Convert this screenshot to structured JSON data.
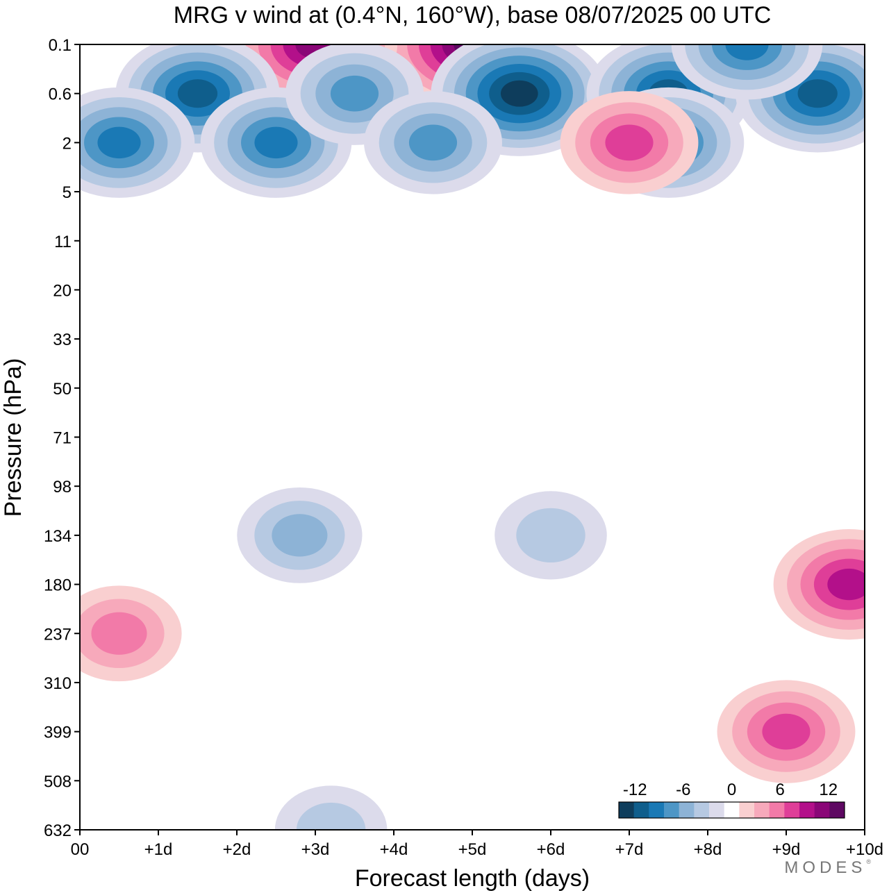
{
  "chart_data": {
    "type": "heatmap",
    "title": "MRG v wind at (0.4°N, 160°W),  base 08/07/2025  00 UTC",
    "xlabel": "Forecast length (days)",
    "ylabel": "Pressure (hPa)",
    "x_ticks": [
      "00",
      "+1d",
      "+2d",
      "+3d",
      "+4d",
      "+5d",
      "+6d",
      "+7d",
      "+8d",
      "+9d",
      "+10d"
    ],
    "x_values": [
      0,
      1,
      2,
      3,
      4,
      5,
      6,
      7,
      8,
      9,
      10
    ],
    "xlim": [
      0,
      10
    ],
    "y_ticks": [
      "0.1",
      "0.6",
      "2",
      "5",
      "11",
      "20",
      "33",
      "50",
      "71",
      "98",
      "134",
      "180",
      "237",
      "310",
      "399",
      "508",
      "632"
    ],
    "y_axis_inverted": true,
    "colorbar": {
      "tick_labels": [
        "-12",
        "-6",
        "0",
        "6",
        "12"
      ],
      "levels": [
        -14,
        -12,
        -10,
        -8,
        -6,
        -4,
        -2,
        0,
        2,
        4,
        6,
        8,
        10,
        12,
        14
      ],
      "colors": [
        "#0e3d5c",
        "#0f5e8c",
        "#1a79b5",
        "#4d96c6",
        "#8db3d6",
        "#b6c9e2",
        "#dcdbeb",
        "#ffffff",
        "#f9cfd0",
        "#f7a9bb",
        "#f27aa8",
        "#df3e98",
        "#b3108a",
        "#8a0677",
        "#5e0862"
      ]
    },
    "features": [
      {
        "value": 6,
        "day": 0.5,
        "level": "237"
      },
      {
        "value": -6,
        "day": 2.8,
        "level": "134"
      },
      {
        "value": -4,
        "day": 6.0,
        "level": "134"
      },
      {
        "value": 10,
        "day": 9.8,
        "level": "180"
      },
      {
        "value": 8,
        "day": 9.0,
        "level": "399"
      },
      {
        "value": -4,
        "day": 3.2,
        "level": "632"
      },
      {
        "value": 14,
        "day": 5.0,
        "level": "0.1"
      },
      {
        "value": 12,
        "day": 3.0,
        "level": "0.1"
      },
      {
        "value": -14,
        "day": 5.6,
        "level": "0.6"
      },
      {
        "value": -12,
        "day": 1.5,
        "level": "0.6"
      },
      {
        "value": -12,
        "day": 7.5,
        "level": "0.6"
      },
      {
        "value": -12,
        "day": 9.4,
        "level": "0.6"
      },
      {
        "value": -10,
        "day": 0.5,
        "level": "2"
      },
      {
        "value": -10,
        "day": 2.5,
        "level": "2"
      },
      {
        "value": -8,
        "day": 3.5,
        "level": "0.6"
      },
      {
        "value": -8,
        "day": 4.5,
        "level": "2"
      },
      {
        "value": -10,
        "day": 8.5,
        "level": "0.1"
      },
      {
        "value": -10,
        "day": 7.5,
        "level": "2"
      },
      {
        "value": 8,
        "day": 7.0,
        "level": "2"
      }
    ]
  },
  "branding": {
    "name": "MODES",
    "mark": "®"
  }
}
